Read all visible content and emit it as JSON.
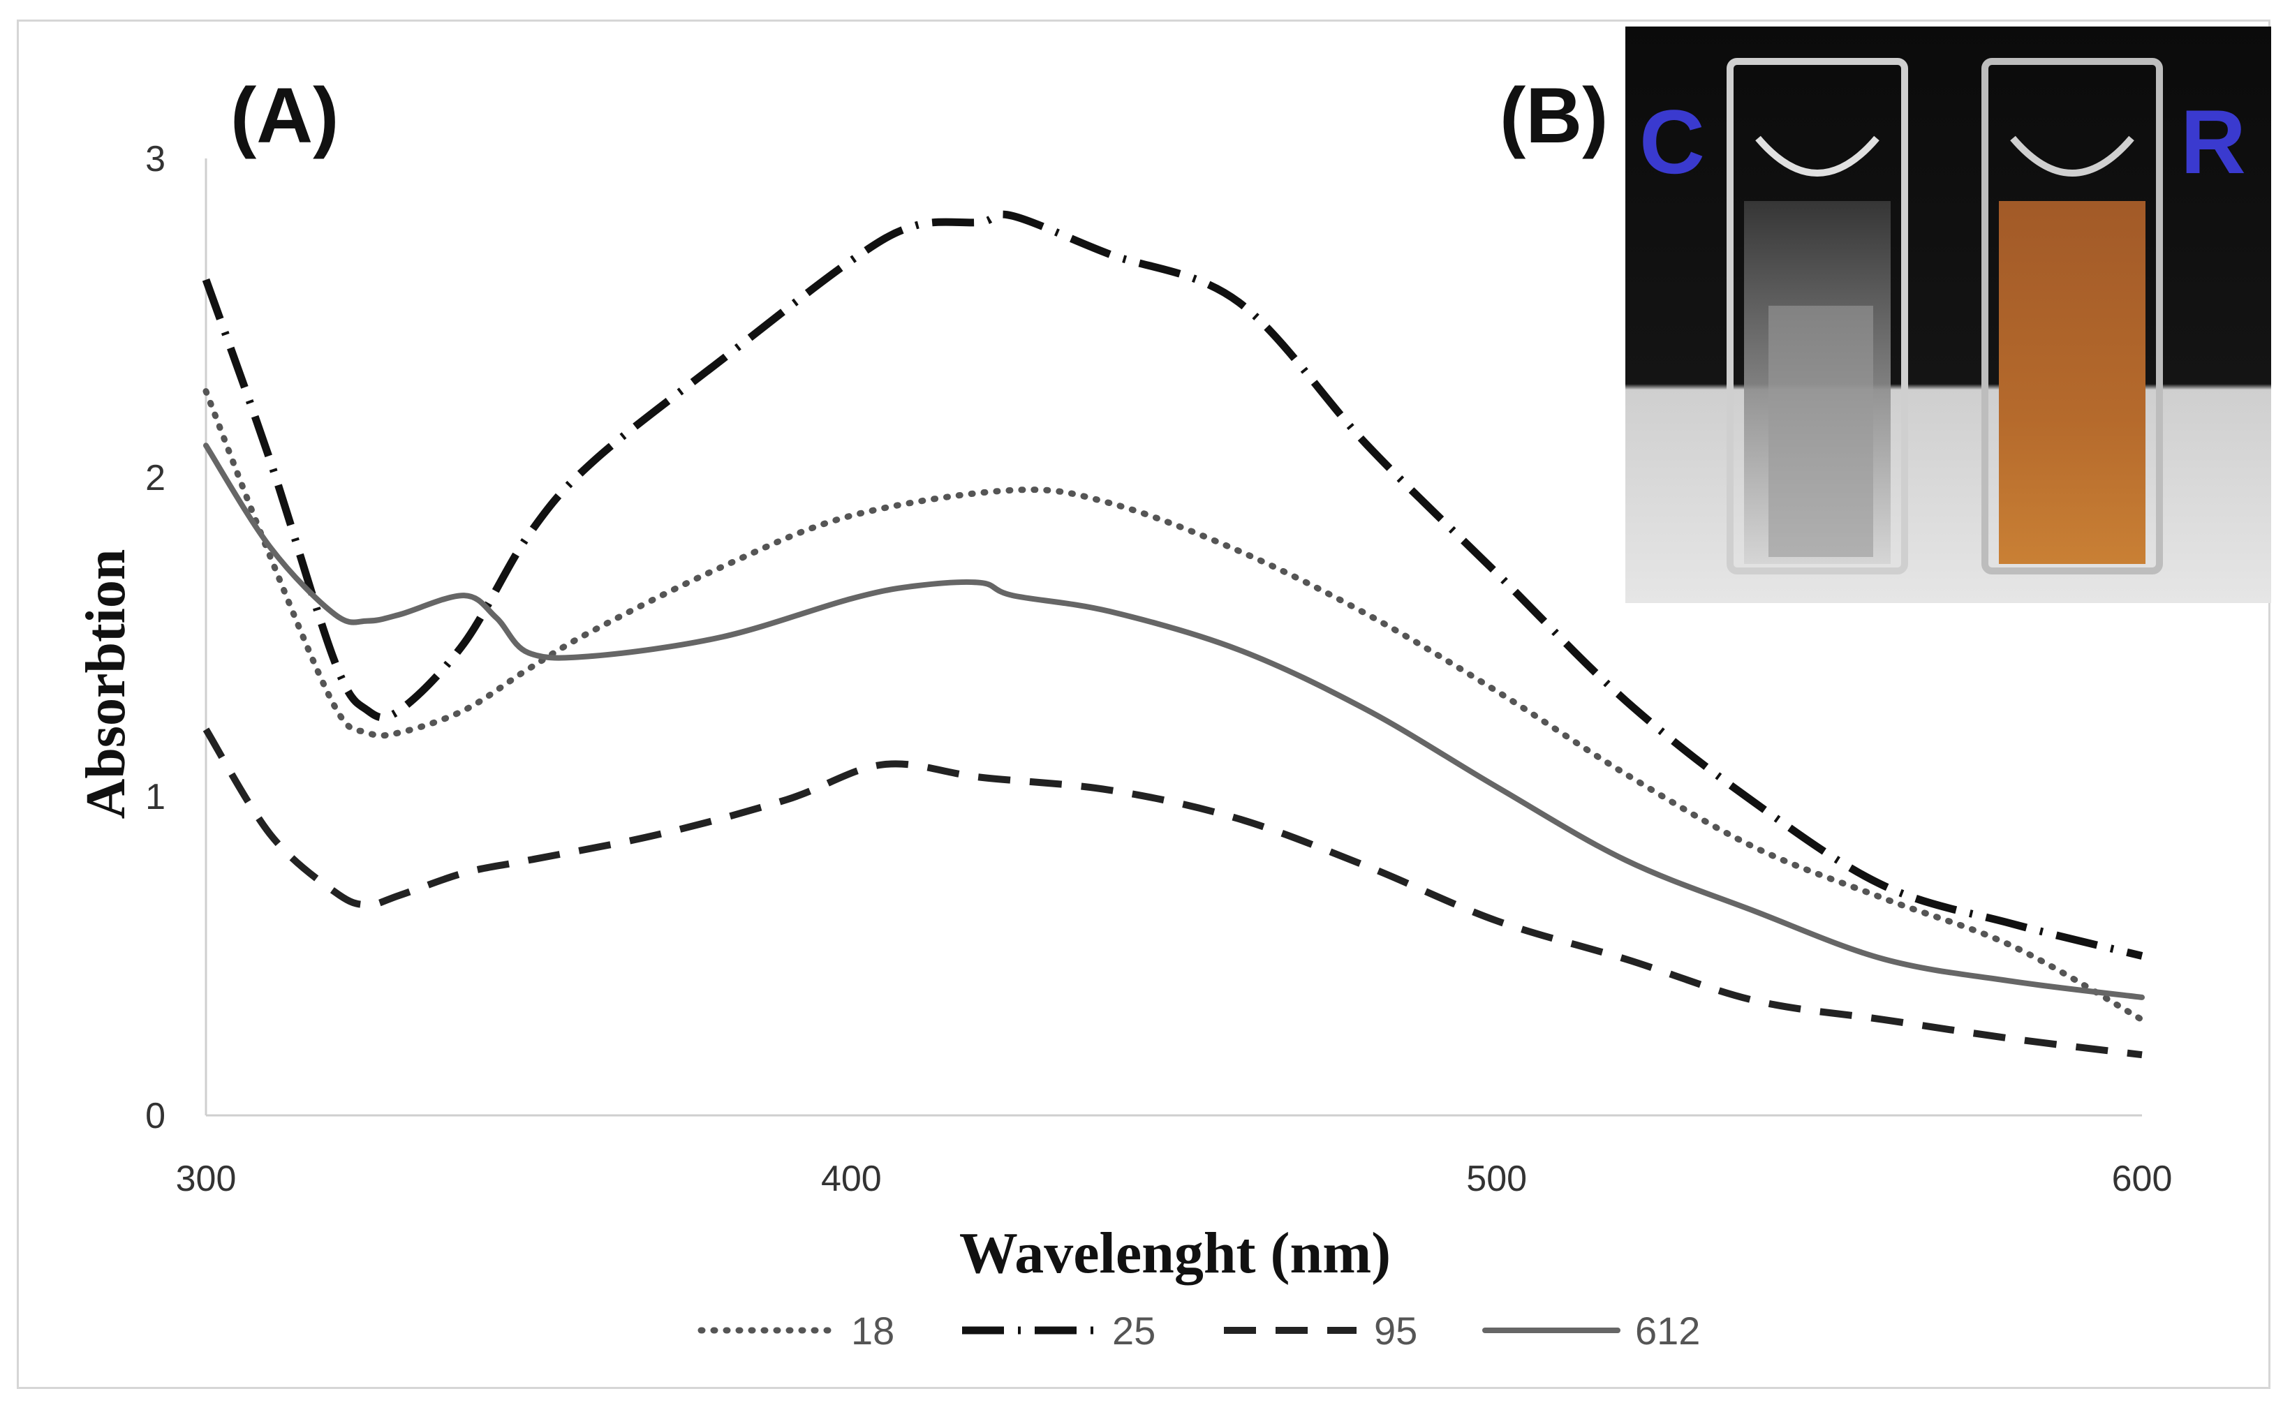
{
  "panel_a_label": "(A)",
  "panel_b_label": "(B)",
  "photo": {
    "left_letter": "C",
    "right_letter": "R",
    "letter_color": "#3a3acf",
    "left_liquid_color": "#c9c9c9",
    "right_liquid_color": "#b06a30"
  },
  "chart_data": {
    "type": "line",
    "title": "",
    "xlabel": "Wavelenght (nm)",
    "ylabel": "Absorbtion",
    "xlim": [
      300,
      600
    ],
    "ylim": [
      0,
      3
    ],
    "xticks": [
      300,
      400,
      500,
      600
    ],
    "yticks": [
      0,
      1,
      2,
      3
    ],
    "grid": false,
    "legend_position": "bottom",
    "series": [
      {
        "name": "18",
        "style": "dotted",
        "color": "#555555",
        "x": [
          300,
          310,
          320,
          325,
          330,
          340,
          350,
          360,
          380,
          400,
          425,
          440,
          460,
          480,
          500,
          520,
          540,
          560,
          580,
          600
        ],
        "y": [
          2.27,
          1.75,
          1.28,
          1.2,
          1.2,
          1.27,
          1.4,
          1.52,
          1.72,
          1.88,
          1.96,
          1.92,
          1.77,
          1.57,
          1.33,
          1.07,
          0.84,
          0.68,
          0.53,
          0.3
        ]
      },
      {
        "name": "25",
        "style": "dashdot",
        "color": "#111111",
        "x": [
          300,
          310,
          320,
          325,
          330,
          340,
          350,
          360,
          380,
          400,
          410,
          420,
          425,
          440,
          460,
          480,
          500,
          520,
          540,
          560,
          580,
          600
        ],
        "y": [
          2.62,
          2.05,
          1.42,
          1.27,
          1.27,
          1.48,
          1.82,
          2.05,
          2.37,
          2.68,
          2.79,
          2.8,
          2.82,
          2.7,
          2.55,
          2.1,
          1.7,
          1.3,
          0.98,
          0.72,
          0.6,
          0.5
        ]
      },
      {
        "name": "95",
        "style": "dashed",
        "color": "#222222",
        "x": [
          300,
          310,
          320,
          325,
          330,
          340,
          350,
          370,
          390,
          405,
          420,
          440,
          460,
          480,
          500,
          520,
          540,
          560,
          580,
          600
        ],
        "y": [
          1.21,
          0.88,
          0.7,
          0.66,
          0.69,
          0.76,
          0.8,
          0.88,
          0.99,
          1.1,
          1.06,
          1.02,
          0.93,
          0.78,
          0.61,
          0.49,
          0.36,
          0.3,
          0.24,
          0.19
        ]
      },
      {
        "name": "612",
        "style": "solid",
        "color": "#666666",
        "x": [
          300,
          310,
          320,
          325,
          330,
          340,
          345,
          350,
          360,
          380,
          400,
          410,
          420,
          425,
          440,
          460,
          480,
          500,
          520,
          540,
          560,
          580,
          600
        ],
        "y": [
          2.1,
          1.78,
          1.57,
          1.55,
          1.57,
          1.63,
          1.56,
          1.45,
          1.44,
          1.5,
          1.62,
          1.66,
          1.67,
          1.63,
          1.58,
          1.46,
          1.27,
          1.03,
          0.8,
          0.64,
          0.49,
          0.42,
          0.37
        ]
      }
    ]
  }
}
